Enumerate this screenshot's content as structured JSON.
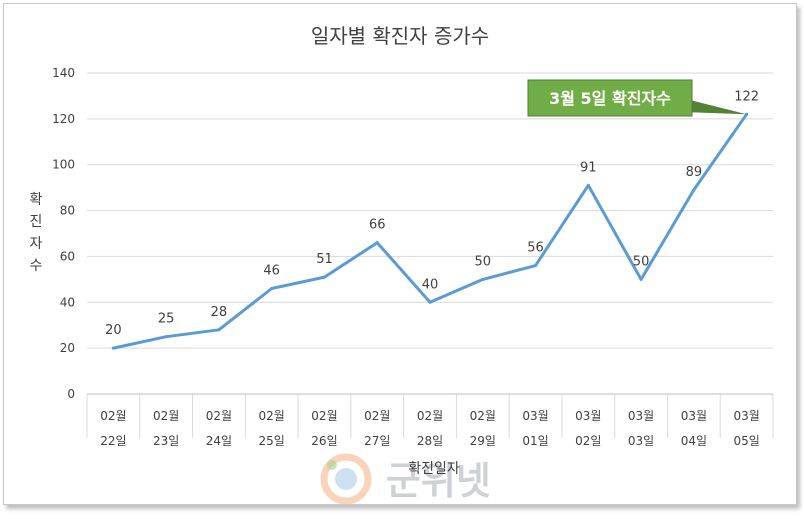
{
  "chart_data": {
    "type": "line",
    "title": "일자별 확진자 증가수",
    "ylabel": "확진자수",
    "xlabel": "확진일자",
    "ylim": [
      0,
      140
    ],
    "yticks": [
      0,
      20,
      40,
      60,
      80,
      100,
      120,
      140
    ],
    "grid": true,
    "categories": [
      [
        "02월",
        "22일"
      ],
      [
        "02월",
        "23일"
      ],
      [
        "02월",
        "24일"
      ],
      [
        "02월",
        "25일"
      ],
      [
        "02월",
        "26일"
      ],
      [
        "02월",
        "27일"
      ],
      [
        "02월",
        "28일"
      ],
      [
        "02월",
        "29일"
      ],
      [
        "03월",
        "01일"
      ],
      [
        "03월",
        "02일"
      ],
      [
        "03월",
        "03일"
      ],
      [
        "03월",
        "04일"
      ],
      [
        "03월",
        "05일"
      ]
    ],
    "series": [
      {
        "values": [
          20,
          25,
          28,
          46,
          51,
          66,
          40,
          50,
          56,
          91,
          50,
          89,
          122
        ],
        "color": "#5b9bd5"
      }
    ],
    "annotation": {
      "text": "3월 5일 확진자수",
      "target_index": 12,
      "color": "#70ad47"
    }
  },
  "watermark": {
    "text": "군위넷"
  }
}
